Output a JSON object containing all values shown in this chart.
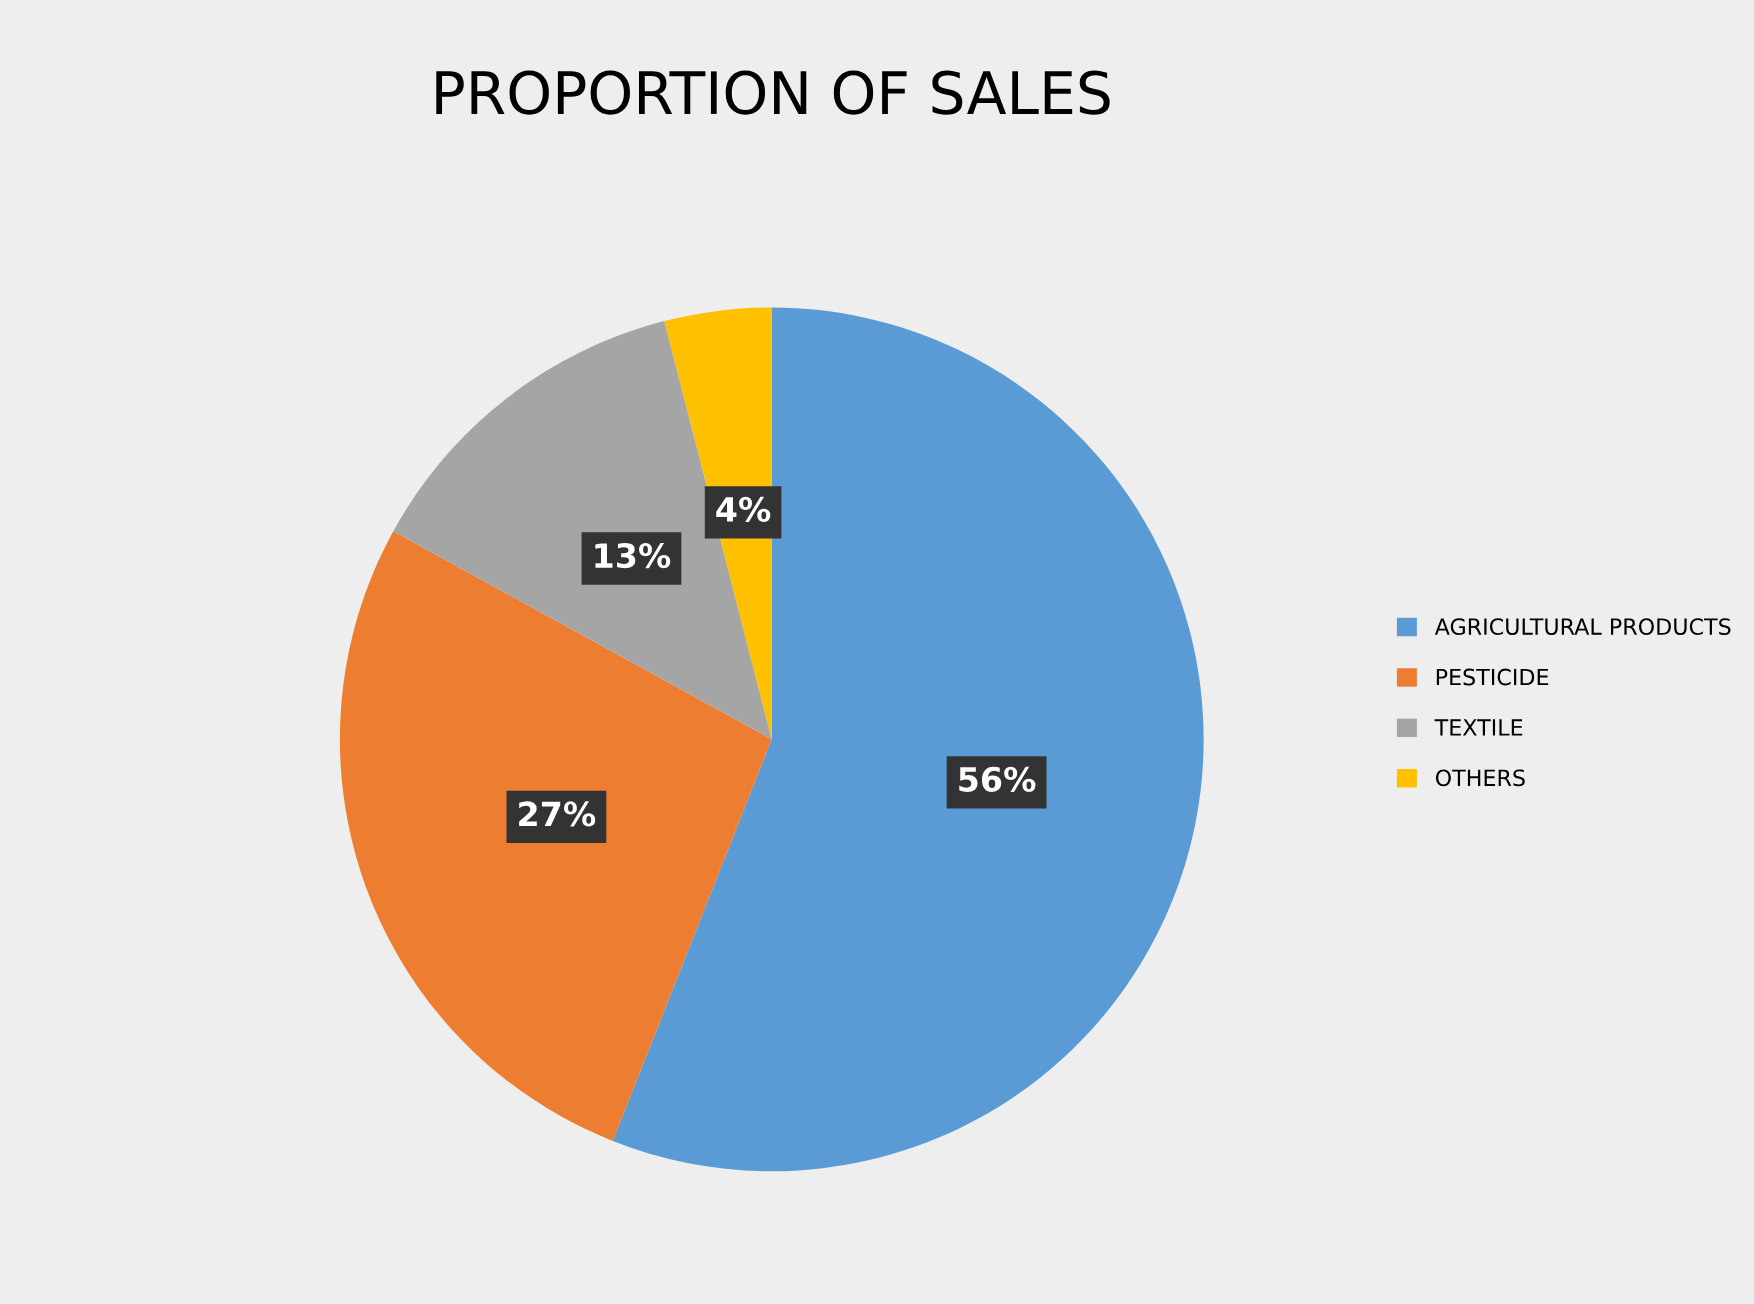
{
  "chart_data": {
    "type": "pie",
    "title": "PROPORTION OF SALES",
    "categories": [
      "AGRICULTURAL PRODUCTS",
      "PESTICIDE",
      "TEXTILE",
      "OTHERS"
    ],
    "values": [
      56,
      27,
      13,
      4
    ],
    "colors": [
      "#5b9bd5",
      "#ed7d31",
      "#a5a5a5",
      "#ffc000"
    ],
    "value_labels": [
      "56%",
      "27%",
      "13%",
      "4%"
    ],
    "legend": "right"
  }
}
